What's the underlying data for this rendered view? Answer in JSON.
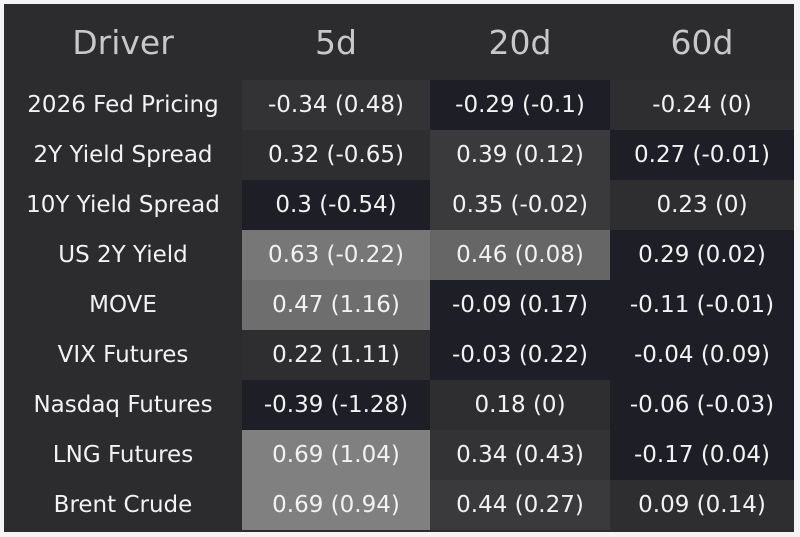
{
  "table": {
    "header": [
      "Driver",
      "5d",
      "20d",
      "60d"
    ],
    "rows": [
      [
        "2026 Fed Pricing",
        "-0.34 (0.48)",
        "-0.29 (-0.1)",
        "-0.24 (0)"
      ],
      [
        "2Y Yield Spread",
        "0.32 (-0.65)",
        "0.39 (0.12)",
        "0.27 (-0.01)"
      ],
      [
        "10Y Yield Spread",
        "0.3 (-0.54)",
        "0.35 (-0.02)",
        "0.23 (0)"
      ],
      [
        "US 2Y Yield",
        "0.63 (-0.22)",
        "0.46 (0.08)",
        "0.29 (0.02)"
      ],
      [
        "MOVE",
        "0.47 (1.16)",
        "-0.09 (0.17)",
        "-0.11 (-0.01)"
      ],
      [
        "VIX Futures",
        "0.22 (1.11)",
        "-0.03 (0.22)",
        "-0.04 (0.09)"
      ],
      [
        "Nasdaq Futures",
        "-0.39 (-1.28)",
        "0.18 (0)",
        "-0.06 (-0.03)"
      ],
      [
        "LNG Futures",
        "0.69 (1.04)",
        "0.34 (0.43)",
        "-0.17 (0.04)"
      ],
      [
        "Brent Crude",
        "0.69 (0.94)",
        "0.44 (0.27)",
        "0.09 (0.14)"
      ]
    ]
  }
}
